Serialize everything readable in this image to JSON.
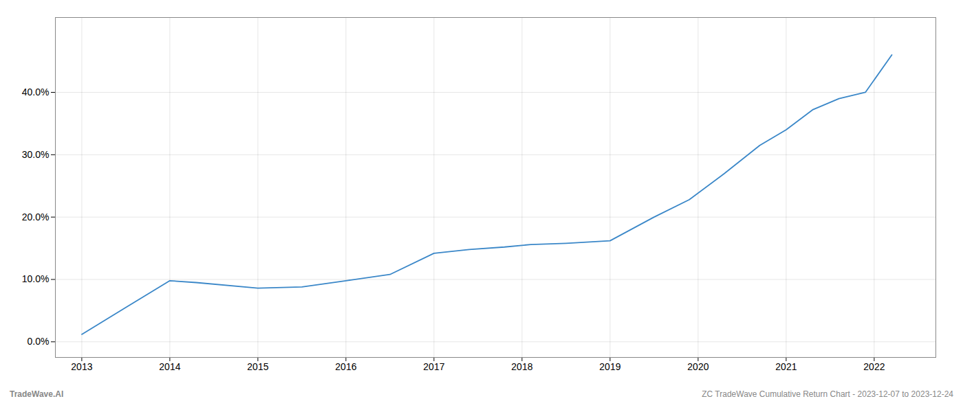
{
  "chart_data": {
    "type": "line",
    "x": [
      2013.0,
      2013.5,
      2014.0,
      2014.3,
      2015.0,
      2015.5,
      2016.0,
      2016.5,
      2017.0,
      2017.4,
      2017.8,
      2018.1,
      2018.5,
      2019.0,
      2019.5,
      2019.9,
      2020.3,
      2020.7,
      2021.0,
      2021.3,
      2021.6,
      2021.9,
      2022.2
    ],
    "values": [
      0.012,
      0.055,
      0.098,
      0.095,
      0.086,
      0.088,
      0.098,
      0.108,
      0.142,
      0.148,
      0.152,
      0.156,
      0.158,
      0.162,
      0.2,
      0.228,
      0.27,
      0.315,
      0.34,
      0.372,
      0.39,
      0.4,
      0.46
    ],
    "color": "#3a87c8",
    "xlim": [
      2012.7,
      2022.7
    ],
    "xticks": [
      2013,
      2014,
      2015,
      2016,
      2017,
      2018,
      2019,
      2020,
      2021,
      2022
    ],
    "ylim": [
      -0.025,
      0.52
    ],
    "yticks": [
      {
        "value": 0.0,
        "label": "0.0%"
      },
      {
        "value": 0.1,
        "label": "10.0%"
      },
      {
        "value": 0.2,
        "label": "20.0%"
      },
      {
        "value": 0.3,
        "label": "30.0%"
      },
      {
        "value": 0.4,
        "label": "40.0%"
      }
    ],
    "grid": true,
    "annotations": [
      "TradeWave.AI",
      "ZC TradeWave Cumulative Return Chart - 2023-12-07 to 2023-12-24"
    ]
  }
}
